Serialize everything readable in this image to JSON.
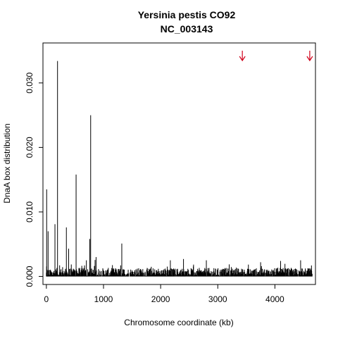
{
  "chart_data": {
    "type": "bar",
    "title": "Yersinia pestis CO92",
    "subtitle": "NC_003143",
    "xlabel": "Chromosome coordinate (kb)",
    "ylabel": "DnaA box distribution",
    "xlim": [
      -60,
      4710
    ],
    "ylim": [
      -0.00125,
      0.0362
    ],
    "xticks": [
      0,
      1000,
      2000,
      3000,
      4000
    ],
    "xtick_labels": [
      "0",
      "1000",
      "2000",
      "3000",
      "4000"
    ],
    "yticks": [
      0.0,
      0.01,
      0.02,
      0.03
    ],
    "ytick_labels": [
      "0.000",
      "0.010",
      "0.020",
      "0.030"
    ],
    "grid": false,
    "legend": "none",
    "bar_color": "#000000",
    "x_end_kb": 4654,
    "baseline_noise_level": 0.0006,
    "peaks": [
      {
        "x": 5,
        "value": 0.0135
      },
      {
        "x": 30,
        "value": 0.007
      },
      {
        "x": 150,
        "value": 0.0081
      },
      {
        "x": 195,
        "value": 0.0334
      },
      {
        "x": 350,
        "value": 0.0076
      },
      {
        "x": 390,
        "value": 0.0043
      },
      {
        "x": 520,
        "value": 0.0158
      },
      {
        "x": 700,
        "value": 0.0025
      },
      {
        "x": 760,
        "value": 0.0058
      },
      {
        "x": 775,
        "value": 0.025
      },
      {
        "x": 870,
        "value": 0.003
      },
      {
        "x": 1320,
        "value": 0.0051
      },
      {
        "x": 2170,
        "value": 0.0025
      },
      {
        "x": 2400,
        "value": 0.0027
      },
      {
        "x": 2800,
        "value": 0.0025
      },
      {
        "x": 3750,
        "value": 0.0022
      },
      {
        "x": 4100,
        "value": 0.0024
      },
      {
        "x": 4450,
        "value": 0.0025
      },
      {
        "x": 4640,
        "value": 0.0017
      }
    ],
    "annotations": [
      {
        "type": "arrow",
        "x": 3430,
        "color": "#d0001a"
      },
      {
        "type": "arrow",
        "x": 4610,
        "color": "#d0001a"
      }
    ]
  }
}
